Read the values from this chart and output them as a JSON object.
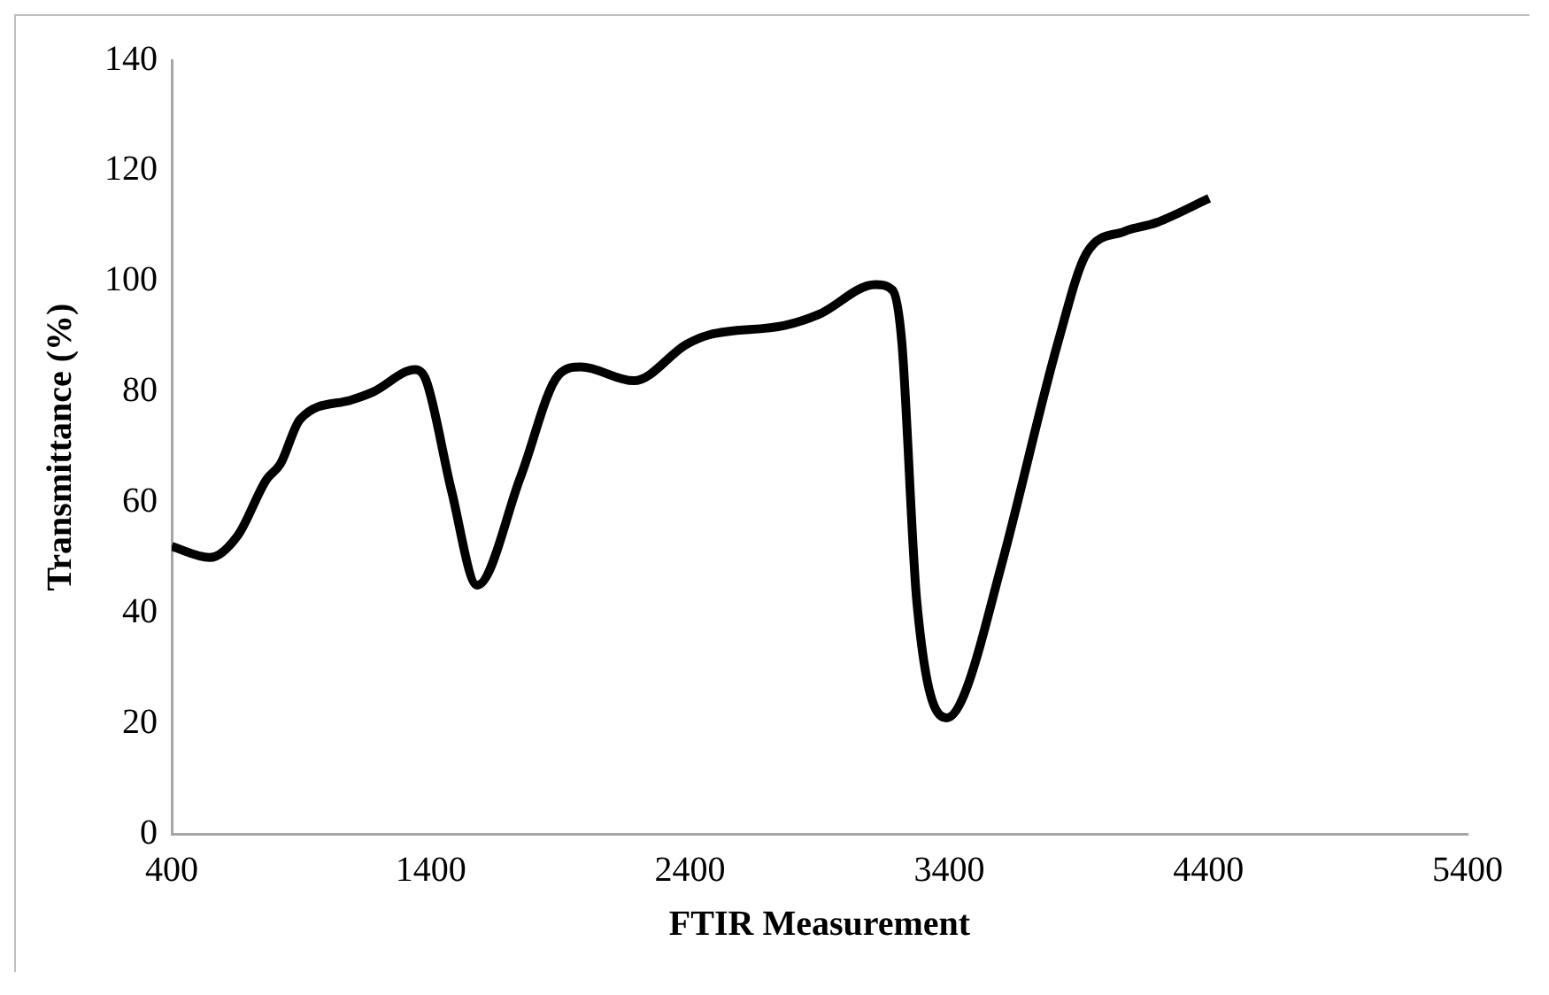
{
  "chart_data": {
    "type": "line",
    "xlabel": "FTIR Measurement",
    "ylabel": "Transmittance (%)",
    "x": [
      400,
      546,
      655,
      764,
      820,
      895,
      1091,
      1178,
      1339,
      1382,
      1480,
      1579,
      1746,
      1892,
      1979,
      2183,
      2387,
      2474,
      2765,
      2897,
      3115,
      3181,
      3217,
      3275,
      3391,
      3456,
      3602,
      3820,
      3929,
      4075,
      4199,
      4403
    ],
    "series": [
      {
        "color": "#000000",
        "values": [
          52,
          50,
          54,
          64,
          67,
          75,
          78.5,
          80,
          84,
          82,
          62,
          45,
          64.6,
          83,
          84.5,
          82,
          88.6,
          90.3,
          92,
          94,
          99.4,
          98.4,
          89,
          42,
          21,
          25,
          48.7,
          89,
          105,
          109,
          110.6,
          115
        ]
      }
    ],
    "xlim": [
      400,
      5400
    ],
    "xticks": [
      400,
      1400,
      2400,
      3400,
      4400,
      5400
    ],
    "ylim": [
      0,
      140
    ],
    "yticks": [
      0,
      20,
      40,
      60,
      80,
      100,
      120,
      140
    ],
    "grid": false,
    "legend": false,
    "marker": "none",
    "line_style": "solid"
  }
}
